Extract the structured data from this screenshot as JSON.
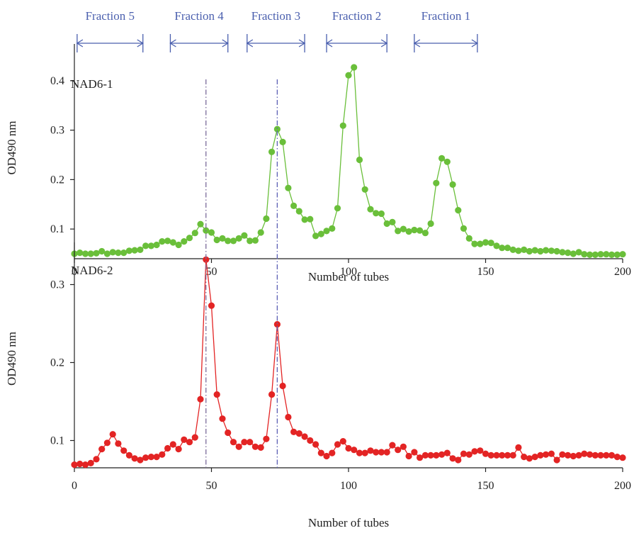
{
  "colors": {
    "axis": "#222222",
    "fraction": "#4a5fae",
    "guide1": "#7a6a9a",
    "guide2": "#5b5fb4"
  },
  "fractions": [
    {
      "label": "Fraction 5",
      "from": 1,
      "to": 25
    },
    {
      "label": "Fraction 4",
      "from": 35,
      "to": 56
    },
    {
      "label": "Fraction 3",
      "from": 63,
      "to": 84
    },
    {
      "label": "Fraction 2",
      "from": 92,
      "to": 114
    },
    {
      "label": "Fraction 1",
      "from": 124,
      "to": 147
    }
  ],
  "guides": [
    48,
    74
  ],
  "chart_data": [
    {
      "type": "line",
      "panel_label": "NAD6-1",
      "xlabel": "Number of tubes",
      "ylabel": "OD490 nm",
      "xlim": [
        0,
        200
      ],
      "ylim": [
        0.04,
        0.46
      ],
      "xticks": [
        0,
        50,
        100,
        150,
        200
      ],
      "yticks": [
        0.1,
        0.2,
        0.3,
        0.4
      ],
      "color": "#6abf3a",
      "x": [
        0,
        2,
        4,
        6,
        8,
        10,
        12,
        14,
        16,
        18,
        20,
        22,
        24,
        26,
        28,
        30,
        32,
        34,
        36,
        38,
        40,
        42,
        44,
        46,
        48,
        50,
        52,
        54,
        56,
        58,
        60,
        62,
        64,
        66,
        68,
        70,
        72,
        74,
        76,
        78,
        80,
        82,
        84,
        86,
        88,
        90,
        92,
        94,
        96,
        98,
        100,
        102,
        104,
        106,
        108,
        110,
        112,
        114,
        116,
        118,
        120,
        122,
        124,
        126,
        128,
        130,
        132,
        134,
        136,
        138,
        140,
        142,
        144,
        146,
        148,
        150,
        152,
        154,
        156,
        158,
        160,
        162,
        164,
        166,
        168,
        170,
        172,
        174,
        176,
        178,
        180,
        182,
        184,
        186,
        188,
        190,
        192,
        194,
        196,
        198,
        200
      ],
      "y": [
        0.05,
        0.052,
        0.05,
        0.05,
        0.051,
        0.055,
        0.05,
        0.053,
        0.052,
        0.052,
        0.056,
        0.057,
        0.058,
        0.066,
        0.066,
        0.068,
        0.075,
        0.076,
        0.073,
        0.068,
        0.075,
        0.082,
        0.092,
        0.11,
        0.097,
        0.093,
        0.078,
        0.081,
        0.076,
        0.076,
        0.081,
        0.087,
        0.076,
        0.077,
        0.093,
        0.121,
        0.256,
        0.302,
        0.276,
        0.183,
        0.147,
        0.136,
        0.119,
        0.12,
        0.086,
        0.09,
        0.096,
        0.101,
        0.142,
        0.309,
        0.411,
        0.427,
        0.24,
        0.18,
        0.14,
        0.132,
        0.131,
        0.111,
        0.114,
        0.096,
        0.1,
        0.095,
        0.098,
        0.097,
        0.092,
        0.111,
        0.193,
        0.243,
        0.236,
        0.19,
        0.138,
        0.101,
        0.081,
        0.07,
        0.07,
        0.073,
        0.072,
        0.066,
        0.062,
        0.062,
        0.058,
        0.056,
        0.058,
        0.055,
        0.057,
        0.055,
        0.057,
        0.056,
        0.055,
        0.053,
        0.052,
        0.05,
        0.053,
        0.049,
        0.048,
        0.048,
        0.049,
        0.049,
        0.048,
        0.048,
        0.049
      ]
    },
    {
      "type": "line",
      "panel_label": "NAD6-2",
      "xlabel": "Number of tubes",
      "ylabel": "OD490 nm",
      "xlim": [
        0,
        200
      ],
      "ylim": [
        0.065,
        0.345
      ],
      "xticks": [
        0,
        50,
        100,
        150,
        200
      ],
      "yticks": [
        0.1,
        0.2,
        0.3
      ],
      "color": "#e32424",
      "x": [
        0,
        2,
        4,
        6,
        8,
        10,
        12,
        14,
        16,
        18,
        20,
        22,
        24,
        26,
        28,
        30,
        32,
        34,
        36,
        38,
        40,
        42,
        44,
        46,
        48,
        50,
        52,
        54,
        56,
        58,
        60,
        62,
        64,
        66,
        68,
        70,
        72,
        74,
        76,
        78,
        80,
        82,
        84,
        86,
        88,
        90,
        92,
        94,
        96,
        98,
        100,
        102,
        104,
        106,
        108,
        110,
        112,
        114,
        116,
        118,
        120,
        122,
        124,
        126,
        128,
        130,
        132,
        134,
        136,
        138,
        140,
        142,
        144,
        146,
        148,
        150,
        152,
        154,
        156,
        158,
        160,
        162,
        164,
        166,
        168,
        170,
        172,
        174,
        176,
        178,
        180,
        182,
        184,
        186,
        188,
        190,
        192,
        194,
        196,
        198,
        200
      ],
      "y": [
        0.069,
        0.07,
        0.069,
        0.071,
        0.076,
        0.089,
        0.097,
        0.108,
        0.096,
        0.087,
        0.081,
        0.077,
        0.075,
        0.078,
        0.079,
        0.079,
        0.082,
        0.09,
        0.095,
        0.089,
        0.101,
        0.098,
        0.104,
        0.153,
        0.332,
        0.273,
        0.159,
        0.128,
        0.11,
        0.098,
        0.092,
        0.098,
        0.098,
        0.092,
        0.091,
        0.102,
        0.159,
        0.249,
        0.17,
        0.13,
        0.111,
        0.109,
        0.105,
        0.1,
        0.095,
        0.084,
        0.08,
        0.084,
        0.095,
        0.099,
        0.09,
        0.088,
        0.084,
        0.084,
        0.087,
        0.085,
        0.085,
        0.085,
        0.094,
        0.088,
        0.092,
        0.08,
        0.085,
        0.078,
        0.081,
        0.081,
        0.081,
        0.082,
        0.084,
        0.077,
        0.075,
        0.083,
        0.082,
        0.086,
        0.087,
        0.083,
        0.081,
        0.081,
        0.081,
        0.081,
        0.081,
        0.091,
        0.079,
        0.077,
        0.079,
        0.081,
        0.082,
        0.083,
        0.075,
        0.082,
        0.081,
        0.08,
        0.081,
        0.083,
        0.082,
        0.081,
        0.081,
        0.081,
        0.081,
        0.079,
        0.078
      ]
    }
  ]
}
